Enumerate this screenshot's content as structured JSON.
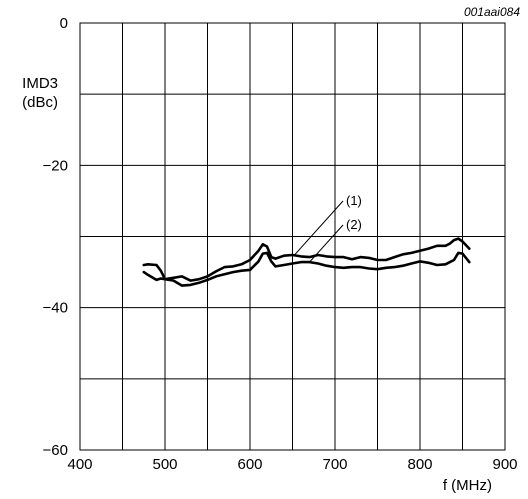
{
  "figure_code": "001aai084",
  "chart_data": {
    "type": "line",
    "xlabel": "f (MHz)",
    "ylabel_line1": "IMD3",
    "ylabel_line2": "(dBc)",
    "xlim": [
      400,
      900
    ],
    "ylim": [
      -60,
      0
    ],
    "x_ticks": [
      400,
      500,
      600,
      700,
      800,
      900
    ],
    "y_ticks": [
      0,
      -20,
      -40,
      -60
    ],
    "x_tick_labels": [
      "400",
      "500",
      "600",
      "700",
      "800",
      "900"
    ],
    "y_tick_labels": [
      "0",
      "−20",
      "−40",
      "−60"
    ],
    "x_grid_step": 50,
    "y_grid_step": 10,
    "grid": true,
    "series": [
      {
        "name": "(1)",
        "x": [
          475,
          480,
          490,
          495,
          500,
          510,
          520,
          530,
          540,
          550,
          560,
          570,
          580,
          590,
          600,
          610,
          615,
          620,
          625,
          630,
          640,
          650,
          660,
          670,
          680,
          690,
          700,
          710,
          720,
          730,
          740,
          750,
          760,
          770,
          780,
          790,
          800,
          810,
          820,
          830,
          835,
          840,
          845,
          850,
          858
        ],
        "y": [
          -34.0,
          -33.9,
          -34.0,
          -34.8,
          -36.0,
          -35.8,
          -35.6,
          -36.2,
          -36.0,
          -35.6,
          -34.9,
          -34.3,
          -34.2,
          -33.9,
          -33.3,
          -32.0,
          -31.1,
          -31.4,
          -32.9,
          -33.1,
          -32.7,
          -32.6,
          -32.8,
          -32.9,
          -32.6,
          -32.8,
          -32.9,
          -32.9,
          -33.2,
          -32.9,
          -33.0,
          -33.3,
          -33.3,
          -32.9,
          -32.5,
          -32.3,
          -32.0,
          -31.7,
          -31.3,
          -31.3,
          -31.0,
          -30.5,
          -30.3,
          -30.7,
          -31.7
        ]
      },
      {
        "name": "(2)",
        "x": [
          475,
          480,
          490,
          495,
          500,
          510,
          520,
          530,
          540,
          550,
          560,
          570,
          580,
          590,
          600,
          610,
          615,
          620,
          625,
          630,
          640,
          650,
          660,
          670,
          680,
          690,
          700,
          710,
          720,
          730,
          740,
          750,
          760,
          770,
          780,
          790,
          800,
          810,
          820,
          830,
          840,
          845,
          850,
          858
        ],
        "y": [
          -35.0,
          -35.4,
          -36.1,
          -35.9,
          -36.0,
          -36.2,
          -36.9,
          -36.8,
          -36.5,
          -36.1,
          -35.6,
          -35.3,
          -35.0,
          -34.8,
          -34.7,
          -33.5,
          -32.4,
          -32.3,
          -33.5,
          -34.2,
          -34.0,
          -33.8,
          -33.6,
          -33.6,
          -33.8,
          -34.1,
          -34.3,
          -34.4,
          -34.3,
          -34.3,
          -34.5,
          -34.6,
          -34.4,
          -34.3,
          -34.1,
          -33.8,
          -33.5,
          -33.7,
          -34.0,
          -33.9,
          -33.3,
          -32.3,
          -32.4,
          -33.6
        ]
      }
    ],
    "annotations": [
      {
        "text": "(1)",
        "target_series": 0,
        "target_x": 652
      },
      {
        "text": "(2)",
        "target_series": 1,
        "target_x": 670
      }
    ]
  }
}
